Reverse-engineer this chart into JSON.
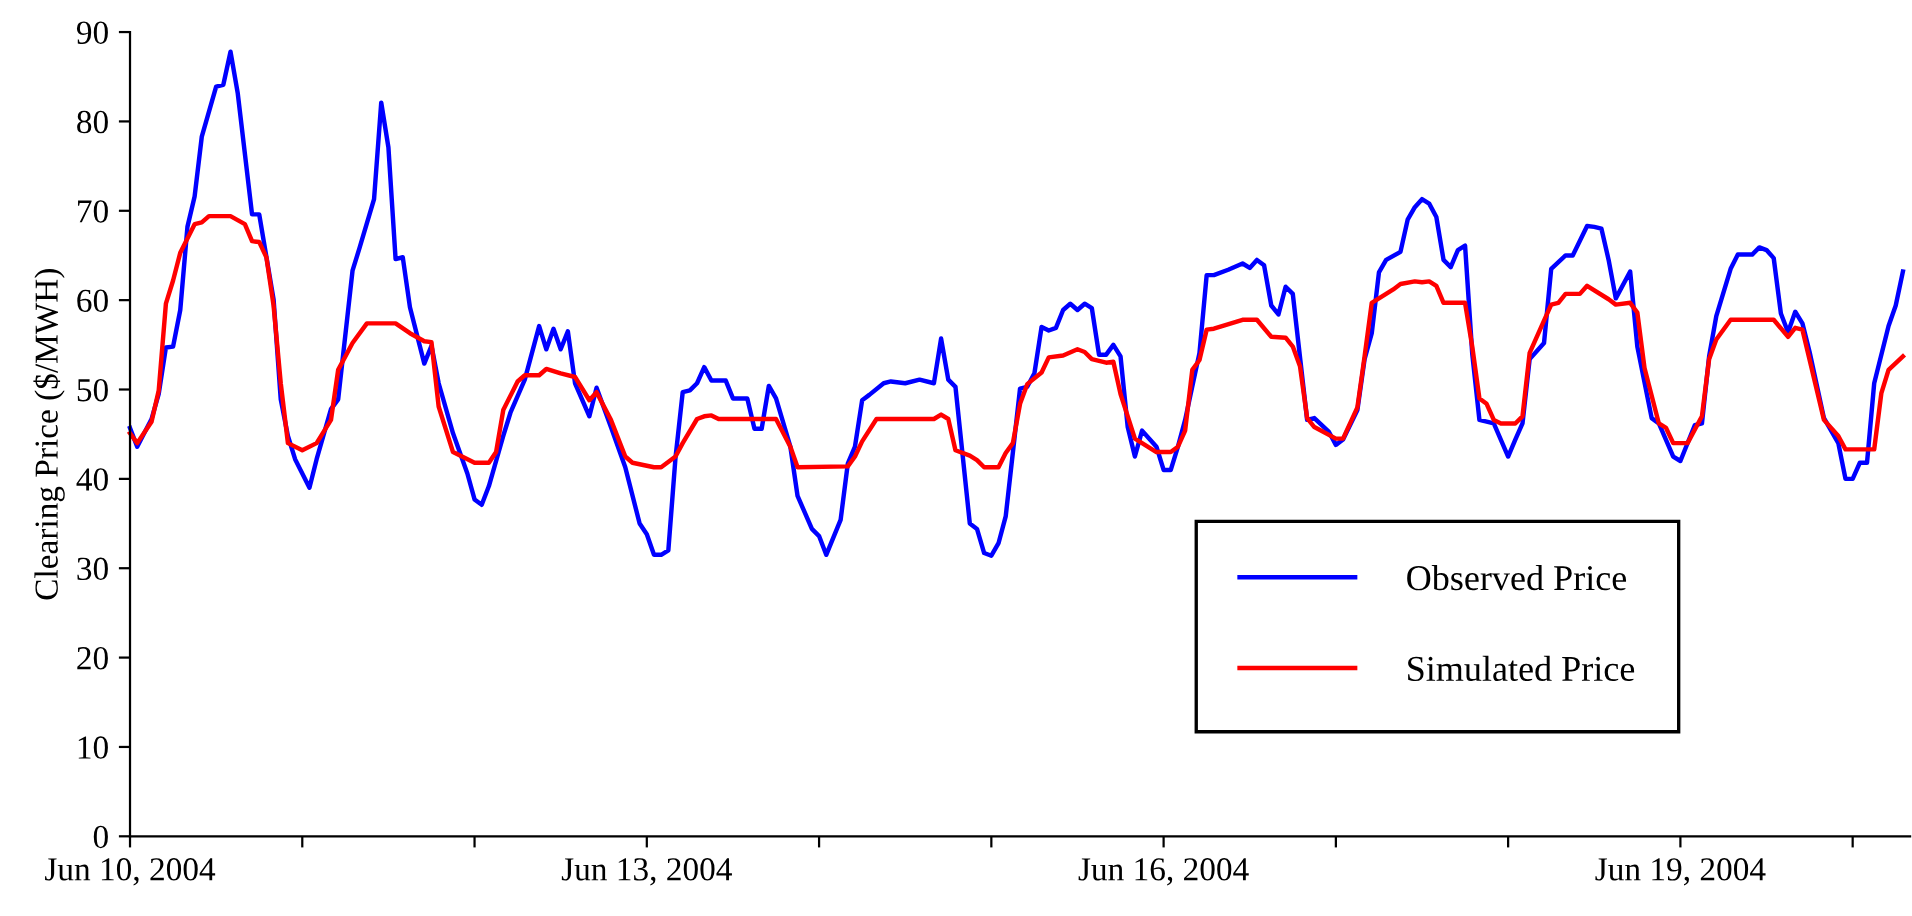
{
  "chart_data": {
    "type": "line",
    "ylabel": "Clearing Price ($/MWH)",
    "xlim": [
      "2004-06-10T00:00",
      "2004-06-20T08:00"
    ],
    "xticks": [
      {
        "value": "2004-06-10",
        "label": "Jun 10, 2004"
      },
      {
        "value": "2004-06-11",
        "label": null
      },
      {
        "value": "2004-06-12",
        "label": null
      },
      {
        "value": "2004-06-13",
        "label": "Jun 13, 2004"
      },
      {
        "value": "2004-06-14",
        "label": null
      },
      {
        "value": "2004-06-15",
        "label": null
      },
      {
        "value": "2004-06-16",
        "label": "Jun 16, 2004"
      },
      {
        "value": "2004-06-17",
        "label": null
      },
      {
        "value": "2004-06-18",
        "label": null
      },
      {
        "value": "2004-06-19",
        "label": "Jun 19, 2004"
      },
      {
        "value": "2004-06-20",
        "label": null
      }
    ],
    "ylim": [
      0,
      90
    ],
    "yticks": [
      0,
      10,
      20,
      30,
      40,
      50,
      60,
      70,
      80,
      90
    ],
    "grid": false,
    "legend": "bottom right",
    "marker": "none",
    "line_style": "solid",
    "series": [
      {
        "name": "Observed Price",
        "color": "#0000ff",
        "x": [
          "2004-06-10T00:00",
          "2004-06-10T01:00",
          "2004-06-10T03:00",
          "2004-06-10T04:00",
          "2004-06-10T05:00",
          "2004-06-10T06:00",
          "2004-06-10T07:00",
          "2004-06-10T08:00",
          "2004-06-10T09:00",
          "2004-06-10T10:00",
          "2004-06-10T12:00",
          "2004-06-10T13:00",
          "2004-06-10T14:00",
          "2004-06-10T15:00",
          "2004-06-10T17:00",
          "2004-06-10T18:00",
          "2004-06-10T20:00",
          "2004-06-10T21:00",
          "2004-06-10T22:00",
          "2004-06-10T23:00",
          "2004-06-11T01:00",
          "2004-06-11T02:00",
          "2004-06-11T04:00",
          "2004-06-11T05:00",
          "2004-06-11T07:00",
          "2004-06-11T08:00",
          "2004-06-11T10:00",
          "2004-06-11T11:00",
          "2004-06-11T12:00",
          "2004-06-11T13:00",
          "2004-06-11T14:00",
          "2004-06-11T15:00",
          "2004-06-11T17:00",
          "2004-06-11T18:00",
          "2004-06-11T19:00",
          "2004-06-11T21:00",
          "2004-06-11T23:00",
          "2004-06-12T00:00",
          "2004-06-12T01:00",
          "2004-06-12T02:00",
          "2004-06-12T04:00",
          "2004-06-12T05:00",
          "2004-06-12T07:00",
          "2004-06-12T09:00",
          "2004-06-12T10:00",
          "2004-06-12T11:00",
          "2004-06-12T12:00",
          "2004-06-12T13:00",
          "2004-06-12T14:00",
          "2004-06-12T16:00",
          "2004-06-12T17:00",
          "2004-06-12T19:00",
          "2004-06-12T21:00",
          "2004-06-12T23:00",
          "2004-06-13T00:00",
          "2004-06-13T01:00",
          "2004-06-13T02:00",
          "2004-06-13T03:00",
          "2004-06-13T04:00",
          "2004-06-13T05:00",
          "2004-06-13T06:00",
          "2004-06-13T07:00",
          "2004-06-13T08:00",
          "2004-06-13T09:00",
          "2004-06-13T11:00",
          "2004-06-13T12:00",
          "2004-06-13T14:00",
          "2004-06-13T15:00",
          "2004-06-13T16:00",
          "2004-06-13T17:00",
          "2004-06-13T18:00",
          "2004-06-13T20:00",
          "2004-06-13T21:00",
          "2004-06-13T23:00",
          "2004-06-14T00:00",
          "2004-06-14T01:00",
          "2004-06-14T03:00",
          "2004-06-14T04:00",
          "2004-06-14T05:00",
          "2004-06-14T06:00",
          "2004-06-14T07:00",
          "2004-06-14T09:00",
          "2004-06-14T10:00",
          "2004-06-14T12:00",
          "2004-06-14T14:00",
          "2004-06-14T16:00",
          "2004-06-14T17:00",
          "2004-06-14T18:00",
          "2004-06-14T19:00",
          "2004-06-14T21:00",
          "2004-06-14T22:00",
          "2004-06-14T23:00",
          "2004-06-15T00:00",
          "2004-06-15T01:00",
          "2004-06-15T02:00",
          "2004-06-15T04:00",
          "2004-06-15T05:00",
          "2004-06-15T06:00",
          "2004-06-15T07:00",
          "2004-06-15T08:00",
          "2004-06-15T09:00",
          "2004-06-15T10:00",
          "2004-06-15T11:00",
          "2004-06-15T12:00",
          "2004-06-15T13:00",
          "2004-06-15T14:00",
          "2004-06-15T15:00",
          "2004-06-15T16:00",
          "2004-06-15T17:00",
          "2004-06-15T18:00",
          "2004-06-15T19:00",
          "2004-06-15T20:00",
          "2004-06-15T21:00",
          "2004-06-15T22:00",
          "2004-06-15T23:00",
          "2004-06-16T00:00",
          "2004-06-16T01:00",
          "2004-06-16T02:00",
          "2004-06-16T03:00",
          "2004-06-16T05:00",
          "2004-06-16T06:00",
          "2004-06-16T07:00",
          "2004-06-16T09:00",
          "2004-06-16T11:00",
          "2004-06-16T12:00",
          "2004-06-16T13:00",
          "2004-06-16T14:00",
          "2004-06-16T15:00",
          "2004-06-16T16:00",
          "2004-06-16T17:00",
          "2004-06-16T18:00",
          "2004-06-16T20:00",
          "2004-06-16T21:00",
          "2004-06-16T23:00",
          "2004-06-17T00:00",
          "2004-06-17T01:00",
          "2004-06-17T03:00",
          "2004-06-17T04:00",
          "2004-06-17T05:00",
          "2004-06-17T06:00",
          "2004-06-17T07:00",
          "2004-06-17T09:00",
          "2004-06-17T10:00",
          "2004-06-17T11:00",
          "2004-06-17T12:00",
          "2004-06-17T13:00",
          "2004-06-17T14:00",
          "2004-06-17T15:00",
          "2004-06-17T16:00",
          "2004-06-17T17:00",
          "2004-06-17T18:00",
          "2004-06-17T19:00",
          "2004-06-17T20:00",
          "2004-06-17T22:00",
          "2004-06-18T00:00",
          "2004-06-18T01:00",
          "2004-06-18T02:00",
          "2004-06-18T03:00",
          "2004-06-18T05:00",
          "2004-06-18T06:00",
          "2004-06-18T08:00",
          "2004-06-18T09:00",
          "2004-06-18T11:00",
          "2004-06-18T12:00",
          "2004-06-18T13:00",
          "2004-06-18T14:00",
          "2004-06-18T15:00",
          "2004-06-18T17:00",
          "2004-06-18T18:00",
          "2004-06-18T20:00",
          "2004-06-18T21:00",
          "2004-06-18T23:00",
          "2004-06-19T00:00",
          "2004-06-19T02:00",
          "2004-06-19T03:00",
          "2004-06-19T04:00",
          "2004-06-19T05:00",
          "2004-06-19T07:00",
          "2004-06-19T08:00",
          "2004-06-19T10:00",
          "2004-06-19T11:00",
          "2004-06-19T12:00",
          "2004-06-19T13:00",
          "2004-06-19T14:00",
          "2004-06-19T15:00",
          "2004-06-19T16:00",
          "2004-06-19T17:00",
          "2004-06-19T18:00",
          "2004-06-19T20:00",
          "2004-06-19T22:00",
          "2004-06-19T23:00",
          "2004-06-20T00:00",
          "2004-06-20T01:00",
          "2004-06-20T02:00",
          "2004-06-20T03:00",
          "2004-06-20T05:00",
          "2004-06-20T06:00",
          "2004-06-20T07:00"
        ],
        "values": [
          45.7,
          43.6,
          46.7,
          49.5,
          54.7,
          54.8,
          58.9,
          68.2,
          71.6,
          78.3,
          83.9,
          84.1,
          87.8,
          83.2,
          69.6,
          69.6,
          60.1,
          48.9,
          44.8,
          42.2,
          39.0,
          42.2,
          47.8,
          48.9,
          63.3,
          65.9,
          71.3,
          82.1,
          77.1,
          64.6,
          64.8,
          59.2,
          52.9,
          54.9,
          50.7,
          45.1,
          40.6,
          37.7,
          37.1,
          39.2,
          44.8,
          47.4,
          51.1,
          57.1,
          54.5,
          56.8,
          54.5,
          56.5,
          50.7,
          47.0,
          50.2,
          45.8,
          41.3,
          35.0,
          33.8,
          31.5,
          31.5,
          32.0,
          42.4,
          49.7,
          49.9,
          50.7,
          52.5,
          51.0,
          51.0,
          49.0,
          49.0,
          45.6,
          45.6,
          50.4,
          49.0,
          43.6,
          38.1,
          34.4,
          33.6,
          31.5,
          35.4,
          41.7,
          43.6,
          48.8,
          49.4,
          50.7,
          50.9,
          50.7,
          51.1,
          50.7,
          55.7,
          51.1,
          50.3,
          35.0,
          34.4,
          31.7,
          31.4,
          32.8,
          35.8,
          50.1,
          50.3,
          51.8,
          57.0,
          56.6,
          56.9,
          58.9,
          59.6,
          58.9,
          59.6,
          59.1,
          53.9,
          53.9,
          55.0,
          53.7,
          45.8,
          42.5,
          45.4,
          44.5,
          43.6,
          41.0,
          41.0,
          43.6,
          46.6,
          54.1,
          62.8,
          62.8,
          63.4,
          64.1,
          63.6,
          64.5,
          63.9,
          59.4,
          58.4,
          61.5,
          60.7,
          46.6,
          46.8,
          45.3,
          43.8,
          44.4,
          47.7,
          53.4,
          56.3,
          63.1,
          64.5,
          65.4,
          69.0,
          70.4,
          71.3,
          70.8,
          69.3,
          64.5,
          63.7,
          65.6,
          66.1,
          54.0,
          46.6,
          46.2,
          42.5,
          44.4,
          46.2,
          53.4,
          55.2,
          63.5,
          65.0,
          65.0,
          68.3,
          68.2,
          68.0,
          64.5,
          60.2,
          63.2,
          54.8,
          46.8,
          46.2,
          42.5,
          42.0,
          46.0,
          46.2,
          53.7,
          58.2,
          63.5,
          65.1,
          65.1,
          65.9,
          65.6,
          64.7,
          58.5,
          56.4,
          58.7,
          57.4,
          54.2,
          46.8,
          44.0,
          40.0,
          40.0,
          41.8,
          41.8,
          50.7,
          57.1,
          59.4,
          63.2
        ]
      },
      {
        "name": "Simulated Price",
        "color": "#ff0000",
        "x": [
          "2004-06-10T00:00",
          "2004-06-10T01:00",
          "2004-06-10T03:00",
          "2004-06-10T04:00",
          "2004-06-10T05:00",
          "2004-06-10T06:00",
          "2004-06-10T07:00",
          "2004-06-10T09:00",
          "2004-06-10T10:00",
          "2004-06-10T11:00",
          "2004-06-10T14:00",
          "2004-06-10T16:00",
          "2004-06-10T17:00",
          "2004-06-10T18:00",
          "2004-06-10T19:00",
          "2004-06-10T20:00",
          "2004-06-10T21:00",
          "2004-06-10T22:00",
          "2004-06-11T00:00",
          "2004-06-11T02:00",
          "2004-06-11T04:00",
          "2004-06-11T05:00",
          "2004-06-11T07:00",
          "2004-06-11T09:00",
          "2004-06-11T13:00",
          "2004-06-11T15:00",
          "2004-06-11T17:00",
          "2004-06-11T18:00",
          "2004-06-11T19:00",
          "2004-06-11T21:00",
          "2004-06-12T00:00",
          "2004-06-12T02:00",
          "2004-06-12T03:00",
          "2004-06-12T04:00",
          "2004-06-12T06:00",
          "2004-06-12T07:00",
          "2004-06-12T09:00",
          "2004-06-12T10:00",
          "2004-06-12T12:00",
          "2004-06-12T14:00",
          "2004-06-12T16:00",
          "2004-06-12T17:00",
          "2004-06-12T19:00",
          "2004-06-12T21:00",
          "2004-06-12T22:00",
          "2004-06-13T01:00",
          "2004-06-13T02:00",
          "2004-06-13T04:00",
          "2004-06-13T05:00",
          "2004-06-13T07:00",
          "2004-06-13T08:00",
          "2004-06-13T09:00",
          "2004-06-13T10:00",
          "2004-06-13T18:00",
          "2004-06-13T20:00",
          "2004-06-13T21:00",
          "2004-06-14T04:00",
          "2004-06-14T05:00",
          "2004-06-14T06:00",
          "2004-06-14T08:00",
          "2004-06-14T16:00",
          "2004-06-14T17:00",
          "2004-06-14T18:00",
          "2004-06-14T19:00",
          "2004-06-14T21:00",
          "2004-06-14T22:00",
          "2004-06-14T23:00",
          "2004-06-15T01:00",
          "2004-06-15T02:00",
          "2004-06-15T03:00",
          "2004-06-15T04:00",
          "2004-06-15T05:00",
          "2004-06-15T07:00",
          "2004-06-15T08:00",
          "2004-06-15T10:00",
          "2004-06-15T12:00",
          "2004-06-15T13:00",
          "2004-06-15T14:00",
          "2004-06-15T16:00",
          "2004-06-15T17:00",
          "2004-06-15T18:00",
          "2004-06-15T20:00",
          "2004-06-15T21:00",
          "2004-06-15T23:00",
          "2004-06-16T01:00",
          "2004-06-16T02:00",
          "2004-06-16T03:00",
          "2004-06-16T04:00",
          "2004-06-16T05:00",
          "2004-06-16T06:00",
          "2004-06-16T07:00",
          "2004-06-16T11:00",
          "2004-06-16T13:00",
          "2004-06-16T15:00",
          "2004-06-16T17:00",
          "2004-06-16T18:00",
          "2004-06-16T19:00",
          "2004-06-16T20:00",
          "2004-06-16T21:00",
          "2004-06-17T00:00",
          "2004-06-17T01:00",
          "2004-06-17T03:00",
          "2004-06-17T04:00",
          "2004-06-17T05:00",
          "2004-06-17T07:00",
          "2004-06-17T08:00",
          "2004-06-17T09:00",
          "2004-06-17T11:00",
          "2004-06-17T12:00",
          "2004-06-17T13:00",
          "2004-06-17T14:00",
          "2004-06-17T15:00",
          "2004-06-17T18:00",
          "2004-06-17T19:00",
          "2004-06-17T20:00",
          "2004-06-17T21:00",
          "2004-06-17T22:00",
          "2004-06-17T23:00",
          "2004-06-18T01:00",
          "2004-06-18T02:00",
          "2004-06-18T03:00",
          "2004-06-18T05:00",
          "2004-06-18T06:00",
          "2004-06-18T07:00",
          "2004-06-18T08:00",
          "2004-06-18T10:00",
          "2004-06-18T11:00",
          "2004-06-18T14:00",
          "2004-06-18T15:00",
          "2004-06-18T17:00",
          "2004-06-18T18:00",
          "2004-06-18T19:00",
          "2004-06-18T21:00",
          "2004-06-18T22:00",
          "2004-06-18T23:00",
          "2004-06-19T01:00",
          "2004-06-19T03:00",
          "2004-06-19T04:00",
          "2004-06-19T05:00",
          "2004-06-19T07:00",
          "2004-06-19T13:00",
          "2004-06-19T15:00",
          "2004-06-19T16:00",
          "2004-06-19T17:00",
          "2004-06-19T20:00",
          "2004-06-19T22:00",
          "2004-06-19T23:00",
          "2004-06-20T03:00",
          "2004-06-20T04:00",
          "2004-06-20T05:00",
          "2004-06-20T07:00"
        ],
        "values": [
          45.1,
          44.0,
          46.4,
          49.9,
          59.6,
          62.2,
          65.3,
          68.5,
          68.7,
          69.4,
          69.4,
          68.5,
          66.6,
          66.5,
          64.8,
          59.4,
          50.7,
          44.0,
          43.2,
          44.0,
          46.6,
          52.2,
          55.2,
          57.4,
          57.4,
          56.3,
          55.4,
          55.3,
          48.1,
          43.0,
          41.8,
          41.8,
          43.0,
          47.7,
          50.9,
          51.6,
          51.6,
          52.3,
          51.8,
          51.4,
          48.8,
          49.7,
          46.6,
          42.5,
          41.8,
          41.3,
          41.3,
          42.5,
          44.0,
          46.7,
          47.0,
          47.1,
          46.7,
          46.7,
          43.6,
          41.3,
          41.4,
          42.5,
          44.2,
          46.7,
          46.7,
          47.2,
          46.7,
          43.2,
          42.6,
          42.1,
          41.3,
          41.3,
          42.9,
          44.0,
          48.4,
          50.6,
          51.9,
          53.6,
          53.8,
          54.5,
          54.2,
          53.4,
          53.0,
          53.1,
          49.5,
          44.5,
          44.0,
          43.0,
          43.0,
          43.6,
          45.4,
          52.2,
          53.3,
          56.7,
          56.8,
          57.8,
          57.8,
          55.9,
          55.8,
          54.8,
          52.6,
          46.8,
          45.8,
          44.5,
          44.5,
          48.0,
          53.7,
          59.7,
          60.7,
          61.2,
          61.8,
          62.1,
          62.0,
          62.1,
          61.6,
          59.7,
          59.7,
          54.8,
          49.0,
          48.4,
          46.6,
          46.2,
          46.2,
          47.0,
          54.1,
          57.7,
          59.5,
          59.7,
          60.7,
          60.7,
          61.6,
          60.1,
          59.5,
          59.7,
          58.6,
          52.4,
          46.2,
          45.7,
          44.0,
          44.0,
          47.0,
          53.4,
          55.6,
          57.8,
          57.8,
          55.9,
          56.9,
          56.7,
          46.6,
          44.8,
          43.3,
          43.3,
          49.6,
          52.2,
          53.7
        ]
      }
    ]
  }
}
